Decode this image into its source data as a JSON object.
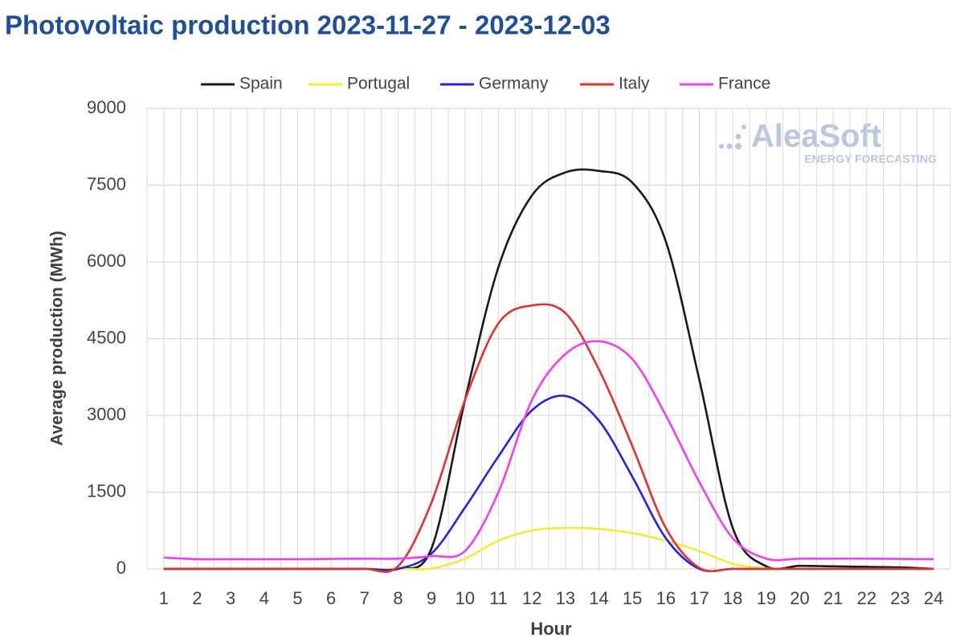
{
  "chart_data": {
    "type": "line",
    "title": "Photovoltaic production 2023-11-27 - 2023-12-03",
    "x_label": "Hour",
    "y_label": "Average production (MWh)",
    "watermark": {
      "brand": "AleaSoft",
      "tagline": "ENERGY FORECASTING"
    },
    "x": [
      1,
      2,
      3,
      4,
      5,
      6,
      7,
      8,
      9,
      10,
      11,
      12,
      13,
      14,
      15,
      16,
      17,
      18,
      19,
      20,
      21,
      22,
      23,
      24
    ],
    "xlim": [
      0.5,
      24.5
    ],
    "xticks": [
      1,
      2,
      3,
      4,
      5,
      6,
      7,
      8,
      9,
      10,
      11,
      12,
      13,
      14,
      15,
      16,
      17,
      18,
      19,
      20,
      21,
      22,
      23,
      24
    ],
    "ylim": [
      0,
      9000
    ],
    "yticks": [
      0,
      1500,
      3000,
      4500,
      6000,
      7500,
      9000
    ],
    "grid": true,
    "legend": "top",
    "series": [
      {
        "name": "Spain",
        "color": "#1a1a1a",
        "values": [
          0,
          0,
          0,
          0,
          0,
          0,
          0,
          0,
          400,
          3300,
          5900,
          7300,
          7750,
          7780,
          7550,
          6400,
          3700,
          800,
          50,
          60,
          50,
          40,
          30,
          0
        ]
      },
      {
        "name": "Portugal",
        "color": "#f2ee2e",
        "values": [
          0,
          0,
          0,
          0,
          0,
          0,
          0,
          0,
          10,
          200,
          550,
          750,
          800,
          780,
          700,
          550,
          350,
          100,
          10,
          0,
          0,
          0,
          0,
          0
        ]
      },
      {
        "name": "Germany",
        "color": "#2323e8",
        "values": [
          0,
          0,
          0,
          0,
          0,
          0,
          0,
          0,
          300,
          1200,
          2200,
          3100,
          3380,
          2900,
          1800,
          600,
          0,
          0,
          0,
          0,
          0,
          0,
          0,
          0
        ]
      },
      {
        "name": "Italy",
        "color": "#e8302a",
        "values": [
          0,
          0,
          0,
          0,
          0,
          0,
          0,
          50,
          1300,
          3300,
          4800,
          5150,
          5000,
          3900,
          2400,
          800,
          20,
          0,
          0,
          0,
          0,
          0,
          0,
          0
        ]
      },
      {
        "name": "France",
        "color": "#f23ef2",
        "values": [
          220,
          190,
          190,
          190,
          190,
          195,
          200,
          200,
          250,
          350,
          1500,
          3300,
          4200,
          4450,
          4100,
          3000,
          1700,
          600,
          200,
          200,
          200,
          200,
          195,
          190
        ]
      }
    ]
  }
}
